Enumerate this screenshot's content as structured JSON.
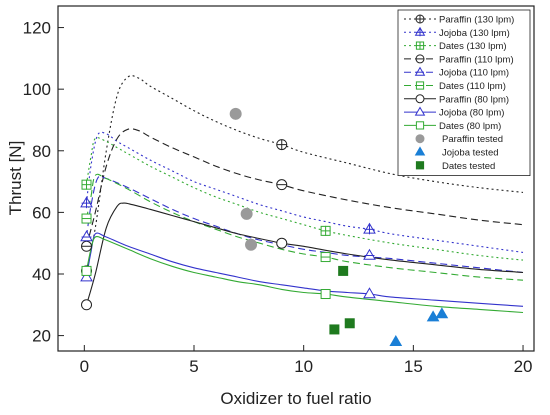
{
  "chart_data": {
    "type": "line",
    "xlabel": "Oxidizer to fuel ratio",
    "ylabel": "Thrust [N]",
    "xlim": [
      -1.2,
      20.5
    ],
    "ylim": [
      15,
      127
    ],
    "xticks": [
      0,
      5,
      10,
      15,
      20
    ],
    "yticks": [
      20,
      40,
      60,
      80,
      100,
      120
    ],
    "grid": false,
    "legend_position": "top-right",
    "series": [
      {
        "name": "Paraffin (130 lpm)",
        "color": "#222222",
        "dash": "2,3",
        "marker": "circle-cross",
        "x": [
          0.1,
          0.5,
          1.0,
          1.5,
          2.0,
          2.5,
          3,
          4,
          5,
          6,
          7,
          8,
          9,
          10,
          12,
          14,
          16,
          18,
          20
        ],
        "y": [
          41,
          55,
          80,
          98,
          104,
          103.5,
          101,
          97,
          93,
          89.5,
          86.5,
          84,
          82,
          79.5,
          76,
          72.5,
          70,
          68,
          66.5
        ],
        "markers": [
          {
            "x": 0.1,
            "y": 41
          },
          {
            "x": 9,
            "y": 82
          }
        ]
      },
      {
        "name": "Jojoba (130 lpm)",
        "color": "#3333cc",
        "dash": "2,3",
        "marker": "triangle-cross",
        "x": [
          0.1,
          0.3,
          0.6,
          1.0,
          1.5,
          2,
          3,
          4,
          5,
          6,
          7,
          8,
          9,
          10,
          11,
          12,
          13,
          14,
          16,
          18,
          20
        ],
        "y": [
          63,
          75,
          85,
          85.5,
          83,
          81,
          77,
          73.5,
          70,
          67.5,
          65,
          62.5,
          60.5,
          58.5,
          57,
          55.5,
          54.5,
          53,
          51,
          49,
          47
        ],
        "markers": [
          {
            "x": 0.1,
            "y": 63
          },
          {
            "x": 13,
            "y": 54.5
          }
        ]
      },
      {
        "name": "Dates (130 lpm)",
        "color": "#33aa33",
        "dash": "2,3",
        "marker": "square-cross",
        "x": [
          0.1,
          0.3,
          0.5,
          1.0,
          1.5,
          2,
          3,
          4,
          5,
          6,
          7,
          8,
          9,
          10,
          11,
          12,
          14,
          16,
          18,
          20
        ],
        "y": [
          69,
          78,
          84,
          83,
          81,
          79,
          75,
          71.5,
          68,
          65,
          62.5,
          60,
          58,
          56,
          54,
          52.5,
          50,
          48,
          46,
          44.5
        ],
        "markers": [
          {
            "x": 0.1,
            "y": 69
          },
          {
            "x": 11,
            "y": 54
          }
        ]
      },
      {
        "name": "Paraffin (110 lpm)",
        "color": "#222222",
        "dash": "7,4",
        "marker": "circle-dash",
        "x": [
          0.1,
          0.5,
          1.0,
          1.5,
          2.0,
          2.5,
          3,
          4,
          5,
          6,
          7,
          8,
          9,
          10,
          12,
          14,
          16,
          18,
          20
        ],
        "y": [
          49,
          60,
          75,
          84,
          87,
          86.5,
          84.5,
          81,
          78,
          75,
          72.5,
          70.5,
          69,
          67,
          64,
          61.5,
          59.5,
          57.5,
          56
        ],
        "markers": [
          {
            "x": 0.1,
            "y": 49
          },
          {
            "x": 9,
            "y": 69
          }
        ]
      },
      {
        "name": "Jojoba (110 lpm)",
        "color": "#3333cc",
        "dash": "7,4",
        "marker": "triangle-dash",
        "x": [
          0.1,
          0.3,
          0.6,
          1.0,
          2,
          3,
          4,
          5,
          6,
          7,
          8,
          9,
          10,
          11,
          12,
          13,
          14,
          16,
          18,
          20
        ],
        "y": [
          52,
          62,
          71,
          71,
          68,
          64.5,
          61,
          58,
          55.5,
          53,
          51,
          49.5,
          48,
          47,
          46,
          45.5,
          45,
          43.5,
          42,
          40.5
        ],
        "markers": [
          {
            "x": 0.1,
            "y": 52
          },
          {
            "x": 13,
            "y": 46
          }
        ]
      },
      {
        "name": "Dates (110 lpm)",
        "color": "#33aa33",
        "dash": "7,4",
        "marker": "square-dash",
        "x": [
          0.1,
          0.3,
          0.5,
          1.0,
          2,
          3,
          4,
          5,
          6,
          7,
          8,
          9,
          10,
          11,
          12,
          14,
          16,
          18,
          20
        ],
        "y": [
          58,
          65,
          72,
          71,
          67.5,
          63.5,
          60,
          57,
          54.5,
          52,
          50,
          48,
          46.5,
          45.5,
          44,
          42,
          40.5,
          39,
          38
        ],
        "markers": [
          {
            "x": 0.1,
            "y": 58
          },
          {
            "x": 11,
            "y": 45.5
          }
        ]
      },
      {
        "name": "Paraffin (80 lpm)",
        "color": "#222222",
        "dash": "",
        "marker": "circle-open",
        "x": [
          0.1,
          0.5,
          1.0,
          1.5,
          1.8,
          2.2,
          3,
          4,
          5,
          6,
          7,
          8,
          9,
          10,
          12,
          14,
          16,
          18,
          20
        ],
        "y": [
          30,
          40,
          55,
          62,
          63,
          62.5,
          61,
          59,
          57,
          55,
          53,
          51.5,
          50,
          49,
          46.5,
          44.5,
          43,
          41.5,
          40.5
        ],
        "markers": [
          {
            "x": 0.1,
            "y": 30
          },
          {
            "x": 9,
            "y": 50
          }
        ]
      },
      {
        "name": "Jojoba (80 lpm)",
        "color": "#3333cc",
        "dash": "",
        "marker": "triangle-open",
        "x": [
          0.1,
          0.3,
          0.5,
          1.0,
          2,
          3,
          4,
          5,
          6,
          7,
          8,
          9,
          10,
          11,
          12,
          13,
          14,
          16,
          18,
          20
        ],
        "y": [
          39,
          47,
          53,
          52,
          49,
          46.5,
          44,
          42,
          40.5,
          39,
          37.5,
          36.5,
          35.5,
          34.5,
          34,
          33.5,
          32.5,
          31.5,
          30.5,
          29.5
        ],
        "markers": [
          {
            "x": 0.1,
            "y": 39
          },
          {
            "x": 13,
            "y": 33.5
          }
        ]
      },
      {
        "name": "Dates (80 lpm)",
        "color": "#33aa33",
        "dash": "",
        "marker": "square-open",
        "x": [
          0.1,
          0.3,
          0.5,
          1.0,
          2,
          3,
          4,
          5,
          6,
          7,
          8,
          9,
          10,
          11,
          12,
          14,
          16,
          18,
          20
        ],
        "y": [
          41,
          48,
          52,
          51,
          48,
          45,
          42.5,
          40.5,
          39,
          37.5,
          36.5,
          35,
          34,
          33.5,
          32.5,
          31,
          29.5,
          28.5,
          27.5
        ],
        "markers": [
          {
            "x": 0.1,
            "y": 41
          },
          {
            "x": 11,
            "y": 33.5
          }
        ]
      }
    ],
    "tested": [
      {
        "name": "Paraffin tested",
        "color": "#9a9a9a",
        "marker": "circle-filled",
        "points": [
          {
            "x": 6.9,
            "y": 92
          },
          {
            "x": 7.4,
            "y": 59.5
          },
          {
            "x": 7.6,
            "y": 49.5
          }
        ]
      },
      {
        "name": "Jojoba tested",
        "color": "#1a7fd6",
        "marker": "triangle-filled",
        "points": [
          {
            "x": 14.2,
            "y": 18
          },
          {
            "x": 15.9,
            "y": 26
          },
          {
            "x": 16.3,
            "y": 27
          }
        ]
      },
      {
        "name": "Dates tested",
        "color": "#1f7a1f",
        "marker": "square-filled",
        "points": [
          {
            "x": 11.4,
            "y": 22
          },
          {
            "x": 12.1,
            "y": 24
          },
          {
            "x": 11.8,
            "y": 41
          }
        ]
      }
    ]
  }
}
